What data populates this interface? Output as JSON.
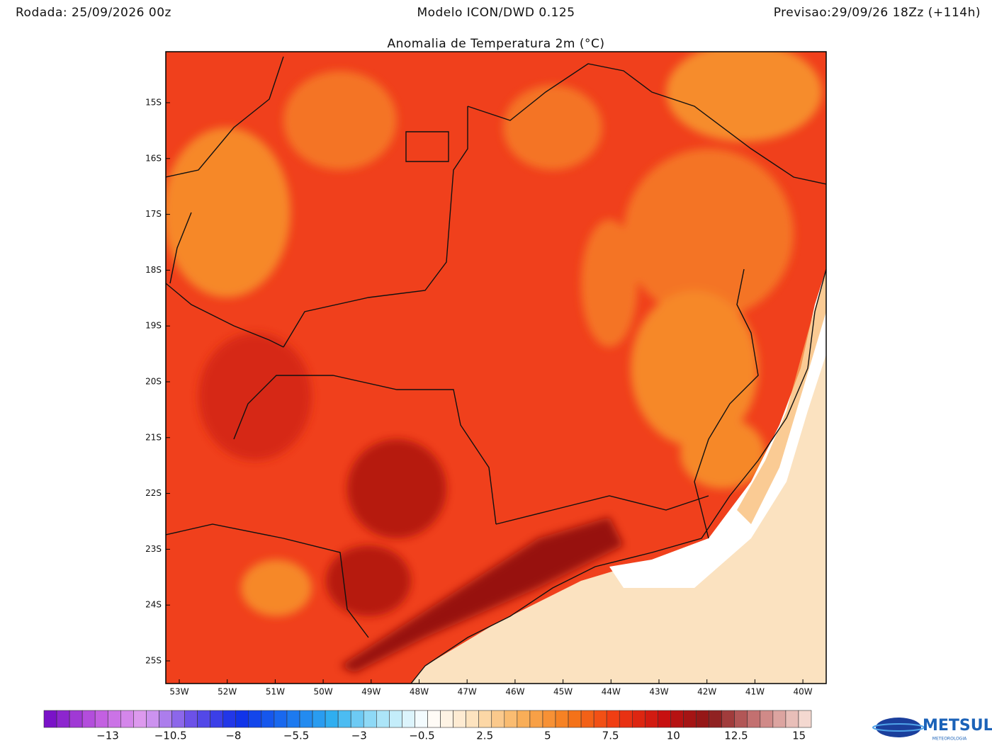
{
  "header": {
    "left": "Rodada: 25/09/2026 00z",
    "center": "Modelo ICON/DWD 0.125",
    "right": "Previsao:29/09/26 18Zz (+114h)"
  },
  "map": {
    "title": "Anomalia de Temperatura 2m (°C)",
    "lat_labels": [
      "15S",
      "16S",
      "17S",
      "18S",
      "19S",
      "20S",
      "21S",
      "22S",
      "23S",
      "24S",
      "25S"
    ],
    "lon_labels": [
      "53W",
      "52W",
      "51W",
      "50W",
      "49W",
      "48W",
      "47W",
      "46W",
      "45W",
      "44W",
      "43W",
      "42W",
      "41W",
      "40W"
    ]
  },
  "colorbar": {
    "labels": [
      "−13",
      "−10.5",
      "−8",
      "−5.5",
      "−3",
      "−0.5",
      "2.5",
      "5",
      "7.5",
      "10",
      "12.5",
      "15"
    ],
    "colors": [
      "#7a12c8",
      "#c05ae0",
      "#e0a0f0",
      "#6a50e8",
      "#1030e8",
      "#1a70f0",
      "#30b0f0",
      "#a8e4f8",
      "#ffffff",
      "#fde2bc",
      "#f9b05a",
      "#f57a1a",
      "#f03a12",
      "#c81010",
      "#8a1818",
      "#c87878",
      "#f4d8d0"
    ]
  },
  "logo": {
    "name": "METSUL",
    "subtitle": "METEOROLOGIA"
  }
}
